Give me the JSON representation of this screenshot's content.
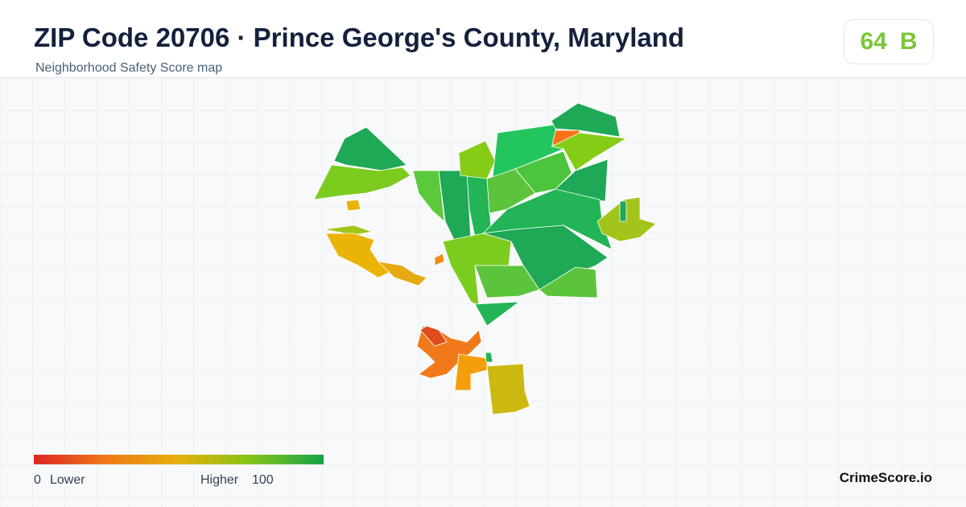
{
  "header": {
    "title": "ZIP Code 20706 · Prince George's County, Maryland",
    "subtitle": "Neighborhood Safety Score map"
  },
  "score": {
    "value": 64,
    "grade": "B"
  },
  "legend": {
    "min": 0,
    "min_label": "Lower",
    "max_label": "Higher",
    "max": 100
  },
  "brand": "CrimeScore.io"
}
